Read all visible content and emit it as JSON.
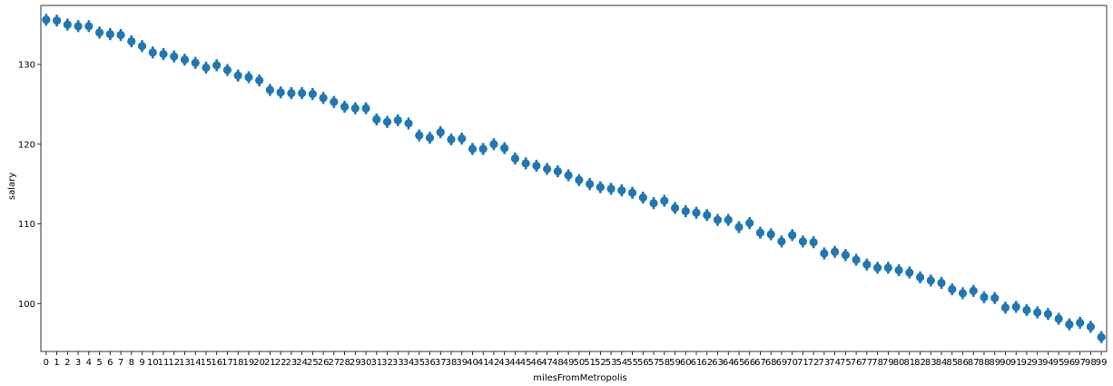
{
  "chart_data": {
    "type": "scatter",
    "title": "",
    "xlabel": "milesFromMetropolis",
    "ylabel": "salary",
    "ylim": [
      94.0,
      137.4
    ],
    "yticks": [
      100,
      110,
      120,
      130
    ],
    "grid": false,
    "legend": "none",
    "marker_color": "#1f77b4",
    "categories": [
      "0",
      "1",
      "2",
      "3",
      "4",
      "5",
      "6",
      "7",
      "8",
      "9",
      "10",
      "11",
      "12",
      "13",
      "14",
      "15",
      "16",
      "17",
      "18",
      "19",
      "20",
      "21",
      "22",
      "23",
      "24",
      "25",
      "26",
      "27",
      "28",
      "29",
      "30",
      "31",
      "32",
      "33",
      "34",
      "35",
      "36",
      "37",
      "38",
      "39",
      "40",
      "41",
      "42",
      "43",
      "44",
      "45",
      "46",
      "47",
      "48",
      "49",
      "50",
      "51",
      "52",
      "53",
      "54",
      "55",
      "56",
      "57",
      "58",
      "59",
      "60",
      "61",
      "62",
      "63",
      "64",
      "65",
      "66",
      "67",
      "68",
      "69",
      "70",
      "71",
      "72",
      "73",
      "74",
      "75",
      "76",
      "77",
      "78",
      "79",
      "80",
      "81",
      "82",
      "83",
      "84",
      "85",
      "86",
      "87",
      "88",
      "89",
      "90",
      "91",
      "92",
      "93",
      "94",
      "95",
      "96",
      "97",
      "98",
      "99"
    ],
    "values": [
      135.6,
      135.5,
      135.0,
      134.8,
      134.8,
      134.0,
      133.8,
      133.7,
      132.9,
      132.3,
      131.5,
      131.3,
      131.0,
      130.6,
      130.2,
      129.6,
      129.9,
      129.3,
      128.6,
      128.4,
      128.0,
      126.8,
      126.5,
      126.4,
      126.4,
      126.3,
      125.8,
      125.3,
      124.7,
      124.5,
      124.5,
      123.1,
      122.8,
      123.0,
      122.6,
      121.1,
      120.8,
      121.5,
      120.6,
      120.7,
      119.4,
      119.4,
      120.0,
      119.5,
      118.2,
      117.6,
      117.3,
      116.9,
      116.6,
      116.1,
      115.5,
      115.0,
      114.6,
      114.4,
      114.2,
      113.9,
      113.3,
      112.6,
      112.9,
      112.0,
      111.6,
      111.4,
      111.1,
      110.5,
      110.5,
      109.6,
      110.1,
      108.9,
      108.7,
      107.8,
      108.6,
      107.8,
      107.7,
      106.3,
      106.5,
      106.1,
      105.5,
      104.9,
      104.5,
      104.5,
      104.2,
      103.9,
      103.3,
      102.9,
      102.6,
      101.8,
      101.3,
      101.6,
      100.8,
      100.7,
      99.5,
      99.6,
      99.2,
      98.9,
      98.7,
      98.1,
      97.4,
      97.6,
      97.1,
      95.8
    ],
    "ci_half": 0.75
  }
}
